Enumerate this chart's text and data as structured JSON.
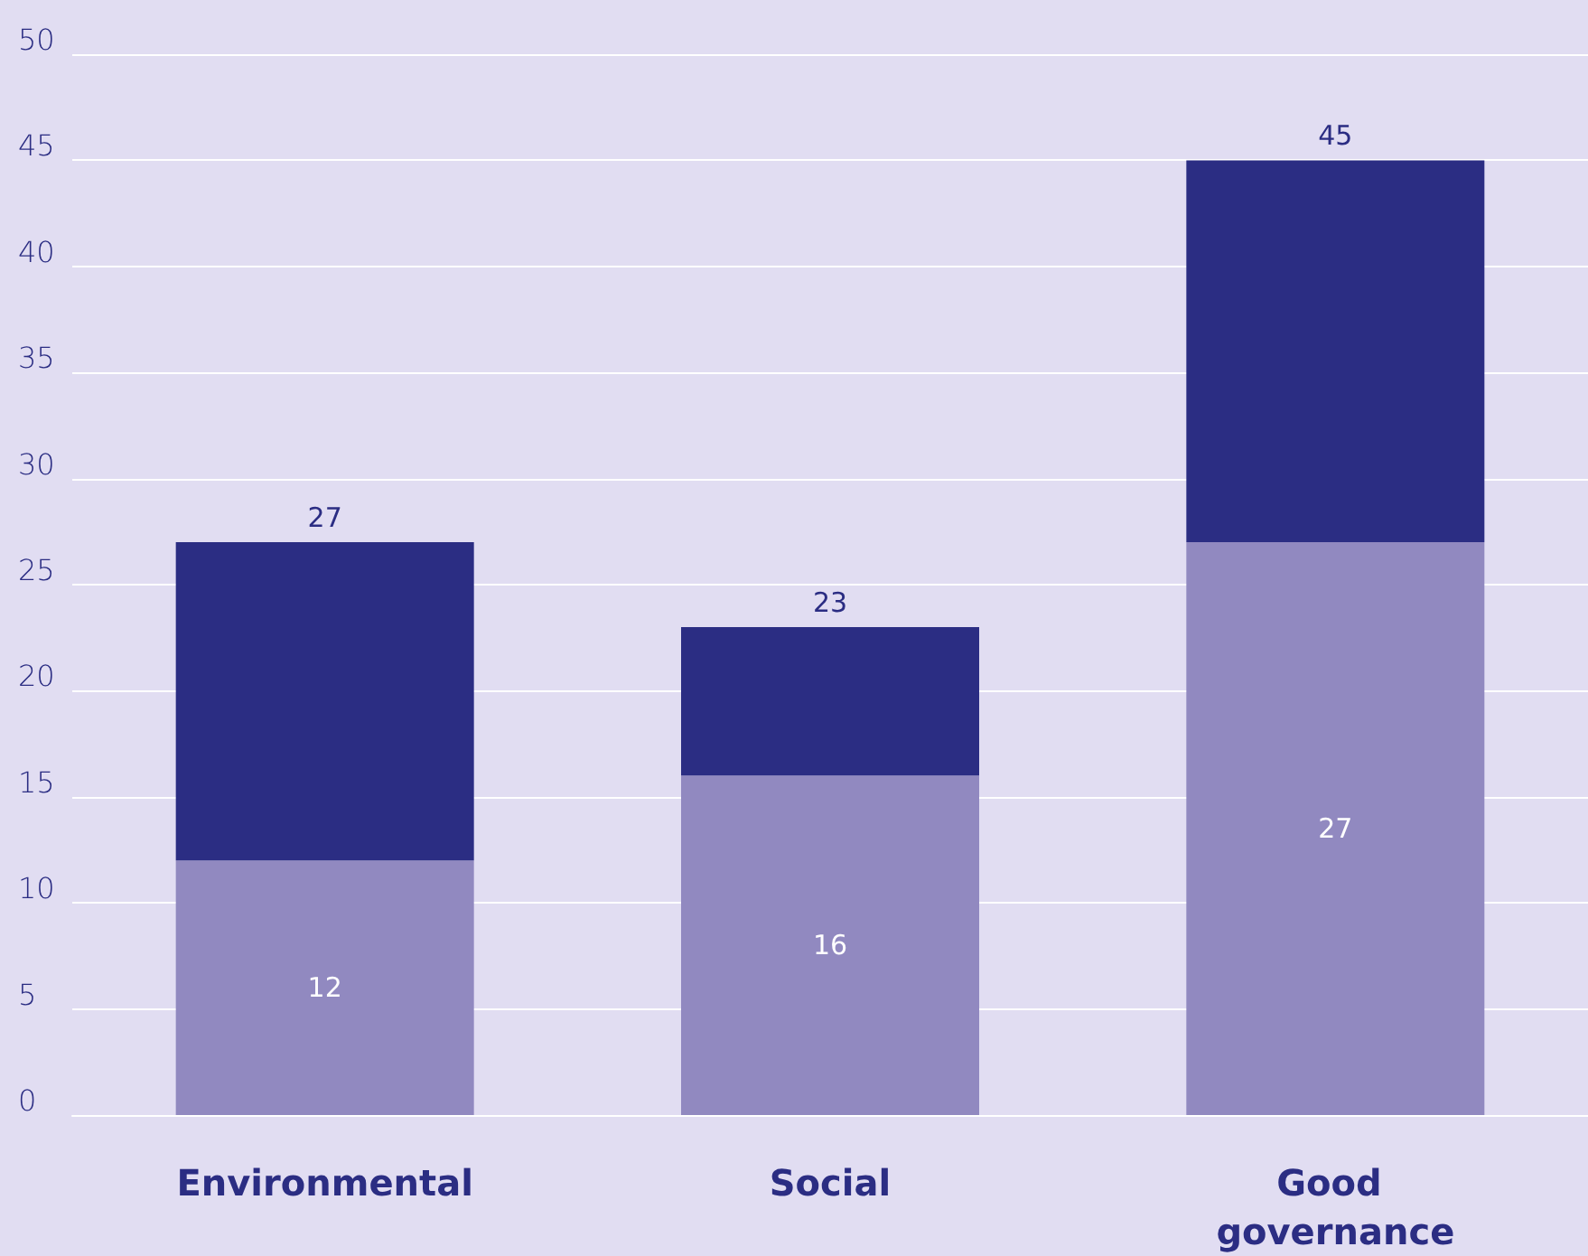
{
  "chart_data": {
    "type": "bar",
    "stacked": true,
    "categories": [
      "Environmental",
      "Social",
      "Good governance"
    ],
    "series": [
      {
        "color": "#9189c0",
        "values": [
          12,
          16,
          27
        ],
        "value_labels": [
          "12",
          "16",
          "27"
        ]
      },
      {
        "color": "#2b2d83",
        "values": [
          15,
          7,
          18
        ]
      }
    ],
    "totals": [
      "27",
      "23",
      "45"
    ],
    "ylim": [
      0,
      50
    ],
    "yticks": [
      0,
      5,
      10,
      15,
      20,
      25,
      30,
      35,
      40,
      45,
      50
    ],
    "grid": "y"
  }
}
